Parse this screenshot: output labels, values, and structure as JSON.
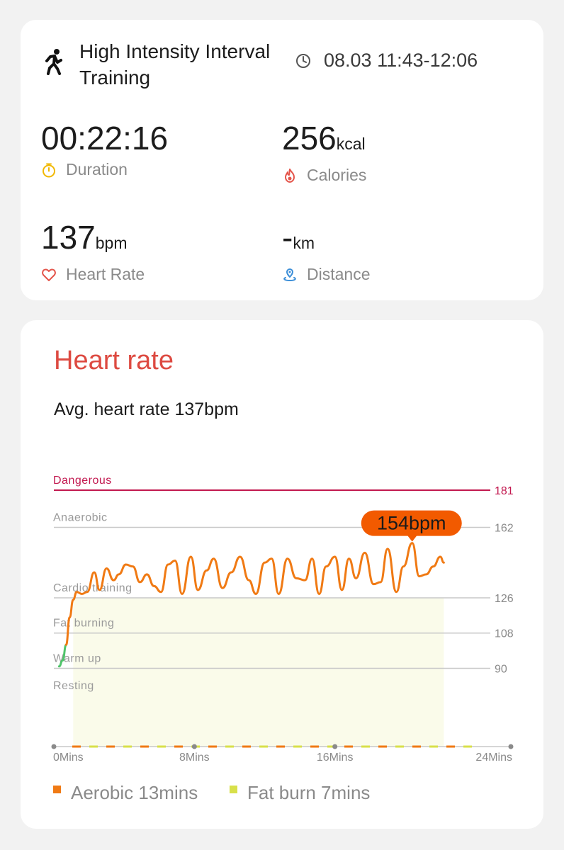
{
  "summary": {
    "activity_title": "High Intensity Interval Training",
    "time_range": "08.03 11:43-12:06",
    "duration": {
      "value": "00:22:16",
      "unit": "",
      "label": "Duration"
    },
    "calories": {
      "value": "256",
      "unit": "kcal",
      "label": "Calories"
    },
    "heart_rate": {
      "value": "137",
      "unit": "bpm",
      "label": "Heart Rate"
    },
    "distance": {
      "value": "-",
      "unit": "km",
      "label": "Distance"
    },
    "icons": {
      "activity": "running-figure-icon",
      "time": "clock-icon",
      "duration": "stopwatch-icon",
      "calories": "flame-icon",
      "heart_rate": "heart-outline-icon",
      "distance": "location-pin-icon"
    }
  },
  "heart_rate_section": {
    "title": "Heart rate",
    "average_text": "Avg. heart rate 137bpm"
  },
  "chart_data": {
    "type": "line",
    "xlabel": "",
    "ylabel": "",
    "x_ticks": [
      "0Mins",
      "8Mins",
      "16Mins",
      "24Mins"
    ],
    "x_range": [
      0,
      24
    ],
    "zones": [
      {
        "name": "Dangerous",
        "threshold": 181,
        "color": "#c2184f"
      },
      {
        "name": "Anaerobic",
        "threshold": 162,
        "color": "#9a9a9a"
      },
      {
        "name": "Cardio training",
        "threshold": 126,
        "color": "#9a9a9a"
      },
      {
        "name": "Fat burning",
        "threshold": 108,
        "color": "#9a9a9a"
      },
      {
        "name": "Warm up",
        "threshold": 90,
        "color": "#9a9a9a"
      },
      {
        "name": "Resting",
        "threshold": null,
        "color": "#9a9a9a"
      }
    ],
    "tick_labels": [
      "181",
      "162",
      "126",
      "108",
      "90"
    ],
    "peak_label": "154bpm",
    "peak": {
      "x": 20.4,
      "y": 154
    },
    "series": [
      {
        "name": "",
        "x": [
          0.3,
          0.5,
          0.7,
          0.9,
          1.1,
          1.3,
          1.6,
          1.9,
          2.3,
          2.6,
          3.0,
          3.4,
          3.7,
          4.1,
          4.5,
          4.9,
          5.3,
          5.7,
          6.1,
          6.5,
          6.9,
          7.3,
          7.8,
          8.2,
          8.7,
          9.1,
          9.6,
          10.1,
          10.6,
          11.1,
          11.5,
          12.0,
          12.4,
          12.8,
          13.3,
          13.8,
          14.3,
          14.7,
          15.1,
          15.5,
          16.0,
          16.4,
          16.8,
          17.2,
          17.7,
          18.2,
          18.6,
          19.0,
          19.5,
          19.9,
          20.4,
          20.8,
          21.2,
          21.6,
          22.0,
          22.2
        ],
        "y": [
          91,
          94,
          102,
          116,
          125,
          129,
          128,
          129,
          139,
          130,
          141,
          135,
          138,
          143,
          142,
          134,
          138,
          132,
          129,
          143,
          145,
          128,
          147,
          130,
          140,
          146,
          131,
          139,
          147,
          135,
          128,
          144,
          146,
          128,
          146,
          136,
          135,
          146,
          128,
          142,
          147,
          130,
          146,
          136,
          149,
          133,
          134,
          151,
          129,
          142,
          154,
          137,
          138,
          142,
          147,
          144
        ]
      }
    ],
    "line_colors": {
      "low": "#4fc46a",
      "main": "#f07a14"
    },
    "zone_fill": "#fafbea",
    "legend": [
      {
        "name": "Aerobic",
        "label": "Aerobic 13mins",
        "color": "#f07a14"
      },
      {
        "name": "Fat burn",
        "label": "Fat burn 7mins",
        "color": "#d8e04a"
      }
    ]
  }
}
